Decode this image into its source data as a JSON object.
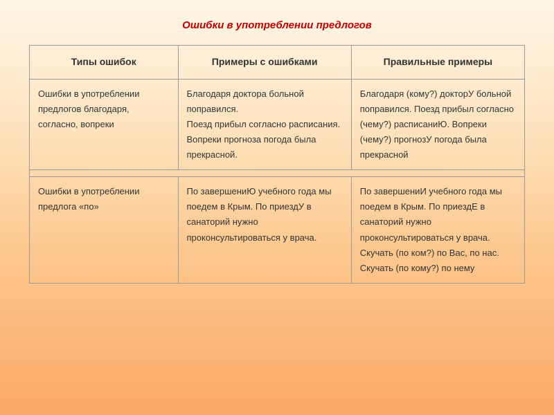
{
  "title": "Ошибки в употреблении предлогов",
  "headers": {
    "col1": "Типы ошибок",
    "col2": "Примеры с ошибками",
    "col3": "Правильные примеры"
  },
  "rows": [
    {
      "type": "Ошибки в употреблении предлогов  благодаря, согласно, вопреки",
      "wrong": "Благодаря доктора больной поправился.\nПоезд прибыл согласно расписания.\nВопреки прогноза погода была прекрасной.",
      "correct": "Благодаря (кому?) докторУ больной поправился. Поезд прибыл согласно (чему?) расписаниЮ. Вопреки (чему?) прогнозУ погода была прекрасной"
    },
    {
      "type": "Ошибки в употреблении предлога «по»",
      "wrong": "По завершениЮ учебного года мы поедем в Крым. По приездУ в санаторий нужно проконсультироваться у врача.",
      "correct": "По завершениИ учебного года мы поедем в Крым. По приездЕ в санаторий нужно проконсультироваться у врача. Скучать (по ком?) по Вас, по нас. Скучать (по кому?) по нему"
    }
  ],
  "styling": {
    "title_color": "#c00000",
    "title_fontsize": 15,
    "body_fontsize": 13,
    "header_fontsize": 14,
    "border_color": "#999999",
    "text_color": "#333333",
    "background_gradient": [
      "#fff6e8",
      "#fde4c0",
      "#fcc88f",
      "#faa968"
    ],
    "line_height": 1.7
  }
}
